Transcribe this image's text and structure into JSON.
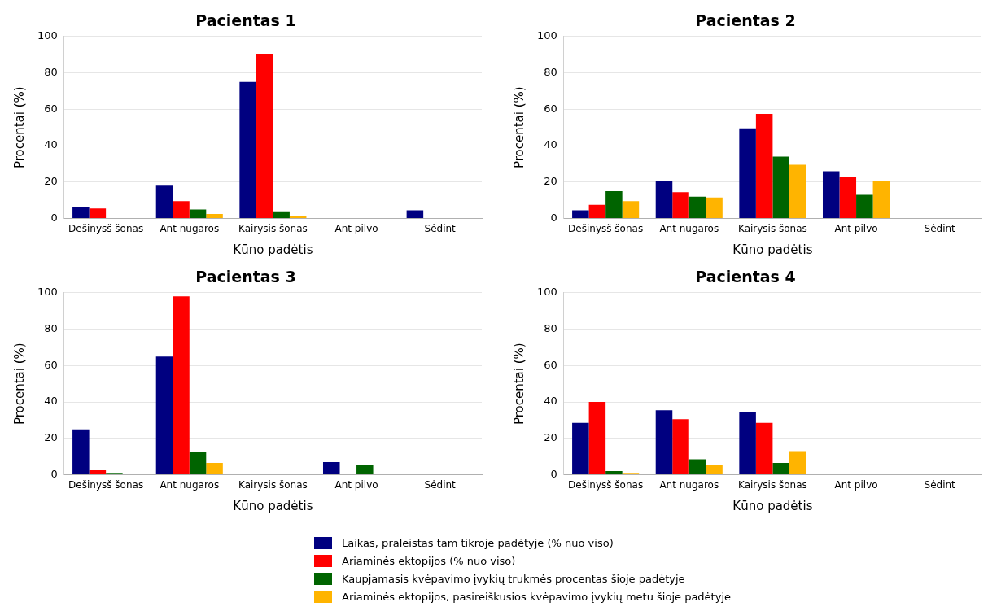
{
  "chart_data": [
    {
      "type": "bar",
      "title": "Pacientas 1",
      "xlabel": "Kūno padėtis",
      "ylabel": "Procentai (%)",
      "categories": [
        "Dešinysš šonas",
        "Ant nugaros",
        "Kairysis šonas",
        "Ant pilvo",
        "Sėdint"
      ],
      "ylim": [
        0,
        100
      ],
      "yticks": [
        0,
        20,
        40,
        60,
        80,
        100
      ],
      "grid": "y",
      "series": [
        {
          "color": "#000080",
          "values": [
            6.5,
            18,
            75,
            0,
            4.5
          ]
        },
        {
          "color": "#ff0000",
          "values": [
            5.5,
            9.5,
            90.5,
            0,
            0
          ]
        },
        {
          "color": "#006400",
          "values": [
            0,
            5,
            4,
            0,
            0
          ]
        },
        {
          "color": "#ffb400",
          "values": [
            0,
            2.5,
            1.5,
            0,
            0
          ]
        }
      ]
    },
    {
      "type": "bar",
      "title": "Pacientas 2",
      "xlabel": "Kūno padėtis",
      "ylabel": "Procentai (%)",
      "categories": [
        "Dešinysš šonas",
        "Ant nugaros",
        "Kairysis šonas",
        "Ant pilvo",
        "Sėdint"
      ],
      "ylim": [
        0,
        100
      ],
      "yticks": [
        0,
        20,
        40,
        60,
        80,
        100
      ],
      "grid": "y",
      "series": [
        {
          "color": "#000080",
          "values": [
            4.5,
            20.5,
            49.5,
            26,
            0
          ]
        },
        {
          "color": "#ff0000",
          "values": [
            7.5,
            14.5,
            57.5,
            23,
            0
          ]
        },
        {
          "color": "#006400",
          "values": [
            15,
            12,
            34,
            13,
            0
          ]
        },
        {
          "color": "#ffb400",
          "values": [
            9.5,
            11.5,
            29.5,
            20.5,
            0
          ]
        }
      ]
    },
    {
      "type": "bar",
      "title": "Pacientas 3",
      "xlabel": "Kūno padėtis",
      "ylabel": "Procentai (%)",
      "categories": [
        "Dešinysš šonas",
        "Ant nugaros",
        "Kairysis šonas",
        "Ant pilvo",
        "Sėdint"
      ],
      "ylim": [
        0,
        100
      ],
      "yticks": [
        0,
        20,
        40,
        60,
        80,
        100
      ],
      "grid": "y",
      "series": [
        {
          "color": "#000080",
          "values": [
            25,
            65,
            0,
            7,
            0
          ]
        },
        {
          "color": "#ff0000",
          "values": [
            2.5,
            98,
            0,
            0,
            0
          ]
        },
        {
          "color": "#006400",
          "values": [
            1,
            12.5,
            0,
            5.5,
            0
          ]
        },
        {
          "color": "#ffb400",
          "values": [
            0.5,
            6.5,
            0,
            0,
            0
          ]
        }
      ]
    },
    {
      "type": "bar",
      "title": "Pacientas 4",
      "xlabel": "Kūno padėtis",
      "ylabel": "Procentai (%)",
      "categories": [
        "Dešinysš šonas",
        "Ant nugaros",
        "Kairysis šonas",
        "Ant pilvo",
        "Sėdint"
      ],
      "ylim": [
        0,
        100
      ],
      "yticks": [
        0,
        20,
        40,
        60,
        80,
        100
      ],
      "grid": "y",
      "legend": "bottom",
      "series": [
        {
          "name": "Laikas, praleistas tam tikroje padėtyje (% nuo viso)",
          "color": "#000080",
          "values": [
            28.5,
            35.5,
            34.5,
            0,
            0
          ]
        },
        {
          "name": "Ariaminės ektopijos (% nuo viso)",
          "color": "#ff0000",
          "values": [
            40,
            30.5,
            28.5,
            0,
            0
          ]
        },
        {
          "name": "Kaupjamasis kvėpavimo įvykių trukmės procentas šioje padėtyje",
          "color": "#006400",
          "values": [
            2,
            8.5,
            6.5,
            0,
            0
          ]
        },
        {
          "name": "Ariaminės ektopijos, pasireiškusios kvėpavimo įvykių metu šioje padėtyje",
          "color": "#ffb400",
          "values": [
            1,
            5.5,
            13,
            0,
            0
          ]
        }
      ]
    }
  ]
}
